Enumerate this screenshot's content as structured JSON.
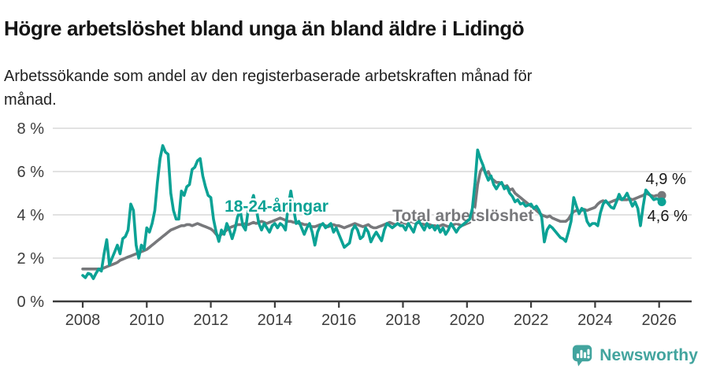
{
  "header": {
    "title": "Högre arbetslöshet bland unga än bland äldre i Lidingö",
    "subtitle": "Arbetssökande som andel av den registerbaserade arbetskraften månad för månad."
  },
  "chart_data": {
    "type": "line",
    "title": "Högre arbetslöshet bland unga än bland äldre i Lidingö",
    "subtitle": "Arbetssökande som andel av den registerbaserade arbetskraften månad för månad.",
    "xlabel": "",
    "ylabel": "",
    "units": "%",
    "grid": "horizontal",
    "legend_position": "inline-labels",
    "x_start_year": 2008,
    "points_per_year": 12,
    "x_axis_ticks": [
      2008,
      2010,
      2012,
      2014,
      2016,
      2018,
      2020,
      2022,
      2024,
      2026
    ],
    "x_axis_tick_labels": [
      "2008",
      "2010",
      "2012",
      "2014",
      "2016",
      "2018",
      "2020",
      "2022",
      "2024",
      "2026"
    ],
    "y_axis_ticks": [
      0,
      2,
      4,
      6,
      8
    ],
    "y_axis_tick_labels": [
      "0 %",
      "2 %",
      "4 %",
      "6 %",
      "8 %"
    ],
    "ylim": [
      0,
      8.5
    ],
    "xlim": [
      2007.1,
      2027.0
    ],
    "colors": {
      "youth": "#0ba295",
      "total": "#77787b",
      "gridline": "#d9d9d9",
      "axis": "#3b3b3b",
      "tick_text": "#3d3d3d",
      "end_label_text": "#1a1a1a"
    },
    "series": [
      {
        "id": "total",
        "name": "Total arbetslöshet",
        "color": "#77787b",
        "label_pos": {
          "year": 2017.67,
          "value": 3.71
        },
        "end_label": "4,9 %",
        "end_label_pos": {
          "year": 2025.58,
          "value": 5.42
        },
        "last_value": 4.9,
        "values": [
          1.5,
          1.5,
          1.5,
          1.5,
          1.5,
          1.5,
          1.5,
          1.5,
          1.55,
          1.6,
          1.65,
          1.7,
          1.75,
          1.8,
          1.9,
          1.95,
          2.0,
          2.05,
          2.1,
          2.15,
          2.2,
          2.25,
          2.3,
          2.35,
          2.4,
          2.5,
          2.6,
          2.7,
          2.8,
          2.9,
          3.0,
          3.1,
          3.2,
          3.3,
          3.35,
          3.4,
          3.45,
          3.5,
          3.5,
          3.55,
          3.55,
          3.5,
          3.55,
          3.6,
          3.55,
          3.5,
          3.45,
          3.4,
          3.35,
          3.25,
          3.1,
          3.0,
          3.1,
          3.2,
          3.3,
          3.4,
          3.45,
          3.5,
          3.55,
          3.55,
          3.55,
          3.6,
          3.55,
          3.6,
          3.65,
          3.6,
          3.65,
          3.7,
          3.65,
          3.6,
          3.65,
          3.7,
          3.75,
          3.8,
          3.85,
          3.8,
          3.75,
          3.7,
          3.7,
          3.65,
          3.65,
          3.6,
          3.6,
          3.55,
          3.55,
          3.5,
          3.45,
          3.45,
          3.5,
          3.55,
          3.55,
          3.5,
          3.45,
          3.5,
          3.55,
          3.5,
          3.5,
          3.45,
          3.4,
          3.45,
          3.5,
          3.55,
          3.6,
          3.55,
          3.5,
          3.45,
          3.5,
          3.55,
          3.45,
          3.4,
          3.4,
          3.45,
          3.5,
          3.55,
          3.6,
          3.65,
          3.6,
          3.55,
          3.6,
          3.65,
          3.65,
          3.6,
          3.65,
          3.7,
          3.65,
          3.6,
          3.65,
          3.6,
          3.55,
          3.6,
          3.55,
          3.5,
          3.5,
          3.45,
          3.5,
          3.55,
          3.5,
          3.45,
          3.5,
          3.55,
          3.6,
          3.55,
          3.5,
          3.55,
          3.6,
          3.65,
          3.8,
          4.4,
          5.4,
          6.0,
          6.2,
          5.9,
          6.0,
          5.7,
          5.6,
          5.5,
          5.5,
          5.45,
          5.3,
          5.35,
          5.15,
          5.2,
          5.0,
          4.9,
          4.8,
          4.7,
          4.6,
          4.5,
          4.4,
          4.3,
          4.2,
          4.1,
          4.0,
          3.95,
          3.9,
          3.95,
          3.85,
          3.8,
          3.75,
          3.7,
          3.7,
          3.7,
          3.8,
          4.0,
          4.15,
          4.2,
          4.15,
          4.2,
          4.25,
          4.2,
          4.25,
          4.3,
          4.35,
          4.5,
          4.6,
          4.65,
          4.6,
          4.55,
          4.6,
          4.65,
          4.7,
          4.75,
          4.7,
          4.7,
          4.7,
          4.75,
          4.7,
          4.75,
          4.8,
          4.85,
          4.9,
          5.0,
          4.95,
          4.9,
          4.85,
          4.9,
          4.9,
          4.9
        ]
      },
      {
        "id": "youth",
        "name": "18-24-åringar",
        "color": "#0ba295",
        "label_pos": {
          "year": 2012.43,
          "value": 4.15
        },
        "end_label": "4,6 %",
        "end_label_pos": {
          "year": 2025.63,
          "value": 3.71
        },
        "last_value": 4.6,
        "values": [
          1.2,
          1.1,
          1.3,
          1.25,
          1.05,
          1.3,
          1.5,
          1.4,
          2.2,
          2.85,
          1.7,
          2.0,
          2.3,
          2.6,
          2.2,
          2.9,
          3.0,
          3.3,
          4.5,
          4.2,
          2.6,
          2.0,
          2.6,
          2.4,
          3.4,
          3.2,
          3.6,
          4.2,
          5.5,
          6.6,
          7.2,
          6.9,
          6.8,
          5.0,
          4.2,
          3.8,
          3.8,
          5.1,
          4.9,
          5.3,
          5.4,
          6.1,
          6.2,
          6.5,
          6.6,
          5.8,
          5.3,
          4.9,
          4.8,
          3.8,
          3.2,
          2.77,
          3.3,
          3.1,
          3.6,
          3.3,
          2.9,
          3.3,
          3.9,
          4.2,
          3.5,
          3.3,
          4.2,
          4.5,
          4.9,
          4.3,
          3.6,
          3.3,
          3.6,
          3.4,
          3.2,
          3.5,
          3.6,
          3.4,
          3.6,
          3.5,
          3.3,
          4.4,
          5.1,
          4.3,
          3.6,
          3.7,
          3.4,
          3.1,
          3.4,
          3.6,
          3.2,
          2.6,
          3.2,
          3.5,
          3.6,
          3.4,
          3.5,
          3.6,
          3.2,
          3.4,
          3.1,
          2.8,
          2.5,
          2.6,
          2.7,
          3.3,
          3.5,
          3.3,
          2.9,
          3.0,
          3.4,
          3.2,
          2.75,
          3.0,
          3.2,
          3.0,
          2.8,
          3.3,
          3.6,
          3.5,
          3.4,
          3.5,
          3.6,
          3.5,
          3.5,
          3.3,
          3.6,
          3.4,
          3.2,
          3.6,
          3.7,
          3.5,
          3.3,
          3.6,
          3.4,
          3.5,
          3.3,
          3.5,
          3.2,
          3.4,
          3.1,
          3.3,
          3.6,
          3.4,
          3.2,
          3.4,
          3.5,
          3.6,
          3.7,
          3.8,
          4.3,
          5.5,
          7.0,
          6.6,
          6.3,
          5.9,
          5.6,
          5.8,
          5.4,
          5.2,
          5.4,
          5.5,
          5.2,
          5.3,
          5.0,
          4.85,
          4.6,
          4.7,
          4.5,
          4.55,
          4.4,
          4.45,
          4.5,
          4.3,
          4.4,
          4.2,
          3.9,
          2.75,
          3.3,
          3.5,
          3.4,
          3.25,
          3.1,
          2.95,
          2.9,
          2.77,
          3.2,
          3.7,
          4.8,
          4.4,
          4.05,
          4.3,
          4.2,
          3.7,
          3.5,
          3.6,
          3.6,
          3.5,
          4.1,
          4.5,
          4.65,
          4.5,
          4.35,
          4.3,
          4.6,
          4.95,
          4.7,
          4.8,
          5.0,
          4.7,
          4.4,
          4.6,
          4.3,
          3.5,
          4.4,
          5.15,
          5.0,
          4.85,
          4.7,
          4.75,
          4.7,
          4.6
        ]
      }
    ]
  },
  "footer": {
    "brand": "Newsworthy"
  }
}
